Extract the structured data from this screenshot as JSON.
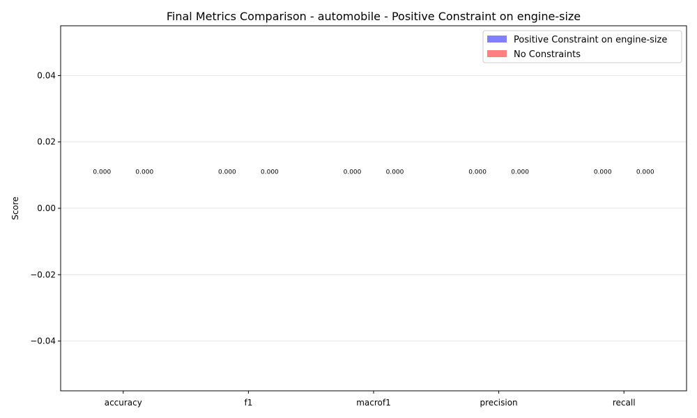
{
  "chart_data": {
    "type": "bar",
    "title": "Final Metrics Comparison - automobile - Positive Constraint on engine-size",
    "xlabel": "",
    "ylabel": "Score",
    "categories": [
      "accuracy",
      "f1",
      "macrof1",
      "precision",
      "recall"
    ],
    "series": [
      {
        "name": "Positive Constraint on engine-size",
        "values": [
          0,
          0,
          0,
          0,
          0
        ],
        "color": "#4a4aff",
        "labels": [
          "0.000",
          "0.000",
          "0.000",
          "0.000",
          "0.000"
        ]
      },
      {
        "name": "No Constraints",
        "values": [
          0,
          0,
          0,
          0,
          0
        ],
        "color": "#ff4a4a",
        "labels": [
          "0.000",
          "0.000",
          "0.000",
          "0.000",
          "0.000"
        ]
      }
    ],
    "ylim": [
      -0.055,
      0.055
    ],
    "yticks": [
      -0.04,
      -0.02,
      0.0,
      0.02,
      0.04
    ],
    "ytick_labels": [
      "−0.04",
      "−0.02",
      "0.00",
      "0.02",
      "0.04"
    ],
    "data_label_offset": 0.011,
    "grid": "horizontal",
    "legend_position": "top-right"
  }
}
